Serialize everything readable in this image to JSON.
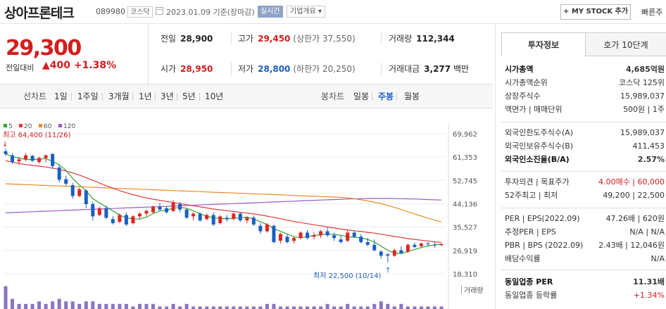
{
  "header": {
    "name": "상아프론테크",
    "code": "089980",
    "market": "코스닥",
    "date": "2023.01.09",
    "date_note": "기준(장마감)",
    "realtime": "실시간",
    "company_info": "기업개요",
    "my_stock": "MY STOCK 추가",
    "quick_order": "빠른주"
  },
  "price": {
    "current": "29,300",
    "compare_label": "전일대비",
    "change_arrow": "▲",
    "change": "400",
    "change_pct": "+1.38%"
  },
  "stats": {
    "prev_label": "전일",
    "prev": "28,900",
    "high_label": "고가",
    "high": "29,450",
    "upper_limit": "(상한가 37,550)",
    "volume_label": "거래량",
    "volume": "112,344",
    "open_label": "시가",
    "open": "28,950",
    "low_label": "저가",
    "low": "28,800",
    "lower_limit": "(하한가 20,250)",
    "amount_label": "거래대금",
    "amount": "3,277",
    "amount_unit": "백만"
  },
  "toolbar": {
    "line_label": "선차트",
    "periods": [
      "1일",
      "1주일",
      "3개월",
      "1년",
      "3년",
      "5년",
      "10년"
    ],
    "candle_label": "봉차트",
    "candles": [
      "일봉",
      "주봉",
      "월봉"
    ],
    "active_candle": "주봉"
  },
  "right": {
    "tab_active": "투자정보",
    "tab_other": "호가 10단계",
    "rows1": [
      {
        "k": "시가총액",
        "v": "4,685억원",
        "bold": true
      },
      {
        "k": "시가총액순위",
        "v": "코스닥 125위"
      },
      {
        "k": "상장주식수",
        "v": "15,989,037"
      },
      {
        "k": "액면가 | 매매단위",
        "v": "500원 | 1주"
      }
    ],
    "rows2": [
      {
        "k": "외국인한도주식수(A)",
        "v": "15,989,037"
      },
      {
        "k": "외국인보유주식수(B)",
        "v": "411,453"
      },
      {
        "k": "외국인소진율(B/A)",
        "v": "2.57%",
        "bold": true
      }
    ],
    "rows3": [
      {
        "k": "투자의견 | 목표주가",
        "v": "4.00매수 | 60,000"
      },
      {
        "k": "52주최고 | 최저",
        "v": "49,200 | 22,500"
      }
    ],
    "rows4": [
      {
        "k": "PER | EPS(2022.09)",
        "v": "47.26배 | 620원"
      },
      {
        "k": "추정PER | EPS",
        "v": "N/A | N/A"
      },
      {
        "k": "PBR | BPS (2022.09)",
        "v": "2.43배 | 12,046원"
      },
      {
        "k": "배당수익률",
        "v": "N/A"
      }
    ],
    "rows5": [
      {
        "k": "동일업종 PER",
        "v": "11.31배",
        "bold": true
      },
      {
        "k": "동일업종 등락률",
        "v": "+1.34%"
      }
    ]
  },
  "chart_data": {
    "type": "candlestick",
    "legend": [
      {
        "name": "5",
        "color": "#31a52b"
      },
      {
        "name": "20",
        "color": "#e23b3b"
      },
      {
        "name": "60",
        "color": "#f08a24"
      },
      {
        "name": "120",
        "color": "#9b59d0"
      }
    ],
    "yticks": [
      "69,962",
      "61,353",
      "52,745",
      "44,136",
      "35,527",
      "26,919",
      "18,310"
    ],
    "ylim": [
      18310,
      69962
    ],
    "high_label": "최고 64,400 (11/26)",
    "low_label": "최저 22,500 (10/14)",
    "volume_label": "거래량",
    "candles": [
      [
        63500,
        64400,
        61800,
        62500
      ],
      [
        62000,
        62800,
        58800,
        59500
      ],
      [
        59800,
        61500,
        58500,
        60500
      ],
      [
        60500,
        62800,
        59800,
        62000
      ],
      [
        61800,
        62200,
        59500,
        60000
      ],
      [
        59500,
        61500,
        59000,
        61000
      ],
      [
        61000,
        62300,
        59500,
        62000
      ],
      [
        62500,
        62800,
        57000,
        58000
      ],
      [
        57500,
        58500,
        52000,
        53000
      ],
      [
        53200,
        54500,
        50800,
        51500
      ],
      [
        51000,
        51800,
        46000,
        47000
      ],
      [
        47000,
        50000,
        46500,
        49500
      ],
      [
        49000,
        49500,
        42500,
        44000
      ],
      [
        44000,
        45000,
        38000,
        39500
      ],
      [
        40000,
        43000,
        39500,
        42500
      ],
      [
        42500,
        43500,
        38500,
        39000
      ],
      [
        38500,
        39500,
        36500,
        37000
      ],
      [
        37500,
        40500,
        37000,
        40000
      ],
      [
        40000,
        41000,
        36000,
        36500
      ],
      [
        37000,
        40000,
        36500,
        39500
      ],
      [
        39500,
        41000,
        38500,
        40500
      ],
      [
        40500,
        42000,
        39500,
        41500
      ],
      [
        41000,
        43500,
        40500,
        43000
      ],
      [
        43000,
        44500,
        41500,
        42000
      ],
      [
        42500,
        43000,
        40500,
        41000
      ],
      [
        41500,
        45500,
        41000,
        44500
      ],
      [
        44000,
        44800,
        41000,
        42000
      ],
      [
        42000,
        42500,
        38500,
        39000
      ],
      [
        39500,
        41000,
        38000,
        40500
      ],
      [
        40500,
        41000,
        37500,
        38000
      ],
      [
        38500,
        40500,
        38000,
        40000
      ],
      [
        40000,
        41000,
        36000,
        36500
      ],
      [
        37000,
        40000,
        36500,
        39500
      ],
      [
        39000,
        40000,
        37500,
        38500
      ],
      [
        38500,
        41000,
        38000,
        40500
      ],
      [
        40500,
        41000,
        37500,
        38000
      ],
      [
        38000,
        39500,
        37000,
        39000
      ],
      [
        39000,
        39800,
        36000,
        36500
      ],
      [
        36000,
        37000,
        33000,
        34000
      ],
      [
        34000,
        37000,
        33500,
        36500
      ],
      [
        36000,
        36500,
        29500,
        30000
      ],
      [
        30500,
        33500,
        29500,
        33000
      ],
      [
        32000,
        33000,
        29500,
        30000
      ],
      [
        30500,
        32000,
        29500,
        31500
      ],
      [
        31500,
        34000,
        31000,
        33500
      ],
      [
        33500,
        34500,
        31000,
        31500
      ],
      [
        32000,
        33500,
        31000,
        32500
      ],
      [
        32500,
        34500,
        31500,
        34000
      ],
      [
        34000,
        35500,
        32000,
        32500
      ],
      [
        32500,
        33500,
        30500,
        31500
      ],
      [
        31000,
        32500,
        29500,
        30000
      ],
      [
        30500,
        34500,
        30000,
        33500
      ],
      [
        33500,
        34000,
        31500,
        32000
      ],
      [
        32000,
        33000,
        29500,
        30000
      ],
      [
        30000,
        31500,
        28500,
        29000
      ],
      [
        29000,
        31000,
        26500,
        27000
      ],
      [
        26500,
        27000,
        24000,
        25000
      ],
      [
        25500,
        26000,
        22500,
        25000
      ],
      [
        25000,
        27500,
        24500,
        27000
      ],
      [
        27000,
        28500,
        25500,
        26000
      ],
      [
        26500,
        29500,
        26000,
        29000
      ],
      [
        29000,
        29800,
        27800,
        28200
      ],
      [
        28500,
        29800,
        28200,
        29500
      ],
      [
        29500,
        30000,
        28500,
        29200
      ],
      [
        29000,
        30000,
        28000,
        28800
      ],
      [
        28900,
        29500,
        28500,
        29300
      ]
    ],
    "ma5": [
      62500,
      61500,
      61000,
      60500,
      60500,
      60600,
      60800,
      59800,
      58500,
      56500,
      53500,
      51000,
      49000,
      46000,
      44500,
      43000,
      41500,
      40000,
      39000,
      38500,
      38500,
      39200,
      40500,
      41500,
      41800,
      42500,
      42800,
      42500,
      41500,
      40500,
      39500,
      39000,
      38800,
      38500,
      38800,
      39000,
      39200,
      38500,
      37500,
      36500,
      35000,
      34000,
      33000,
      32000,
      31600,
      32000,
      32500,
      32700,
      33000,
      32800,
      32500,
      32000,
      31800,
      31500,
      31000,
      30000,
      28500,
      27000,
      26000,
      25800,
      26500,
      27300,
      28000,
      28600,
      29000,
      29200
    ],
    "ma20": [
      60000,
      59500,
      59000,
      58600,
      58300,
      58000,
      57700,
      57300,
      56800,
      56200,
      55500,
      54700,
      53800,
      52800,
      51800,
      50800,
      49900,
      49000,
      48200,
      47500,
      46900,
      46300,
      45800,
      45400,
      45000,
      44600,
      44200,
      43800,
      43400,
      43000,
      42600,
      42200,
      41900,
      41600,
      41300,
      41000,
      40700,
      40400,
      40000,
      39600,
      39100,
      38600,
      38100,
      37600,
      37200,
      36800,
      36400,
      36000,
      35600,
      35200,
      34800,
      34500,
      34200,
      33900,
      33600,
      33300,
      32900,
      32500,
      32100,
      31700,
      31300,
      31000,
      30700,
      30400,
      30100,
      29900
    ],
    "ma60": [
      51500,
      51400,
      51300,
      51200,
      51100,
      51000,
      50900,
      50800,
      50700,
      50600,
      50500,
      50400,
      50300,
      50200,
      50100,
      50000,
      49900,
      49800,
      49700,
      49600,
      49500,
      49400,
      49300,
      49200,
      49100,
      49000,
      48900,
      48800,
      48700,
      48600,
      48500,
      48400,
      48300,
      48200,
      48100,
      48000,
      47900,
      47800,
      47700,
      47600,
      47500,
      47400,
      47300,
      47200,
      47100,
      47000,
      46900,
      46800,
      46700,
      46600,
      46500,
      46300,
      46000,
      45600,
      45200,
      44700,
      44200,
      43500,
      42800,
      42000,
      41200,
      40400,
      39600,
      38800,
      38100,
      37500
    ],
    "ma120": [
      40800,
      40900,
      41000,
      41100,
      41200,
      41300,
      41400,
      41500,
      41600,
      41700,
      41800,
      41900,
      42000,
      42100,
      42200,
      42300,
      42400,
      42500,
      42600,
      42700,
      42800,
      42900,
      43000,
      43100,
      43200,
      43300,
      43400,
      43500,
      43600,
      43700,
      43800,
      43900,
      44000,
      44100,
      44200,
      44300,
      44400,
      44500,
      44600,
      44700,
      44800,
      44900,
      45000,
      45100,
      45200,
      45300,
      45400,
      45500,
      45600,
      45700,
      45800,
      45900,
      45950,
      46000,
      46050,
      46100,
      46100,
      46100,
      46050,
      46000,
      45950,
      45900,
      45800,
      45700,
      45600,
      45500
    ],
    "volumes": [
      9,
      4,
      2,
      2,
      2,
      3,
      2,
      3,
      4,
      3,
      3,
      2,
      3,
      3,
      2,
      2,
      2,
      2,
      2,
      1,
      2,
      2,
      2,
      1,
      1,
      2,
      1,
      2,
      1,
      1,
      1,
      1,
      1,
      1,
      1,
      1,
      1,
      1,
      1,
      2,
      2,
      1,
      1,
      1,
      1,
      1,
      1,
      1,
      2,
      1,
      1,
      2,
      1,
      1,
      1,
      2,
      3,
      2,
      1,
      2,
      1,
      1,
      1,
      1,
      1,
      1
    ]
  }
}
